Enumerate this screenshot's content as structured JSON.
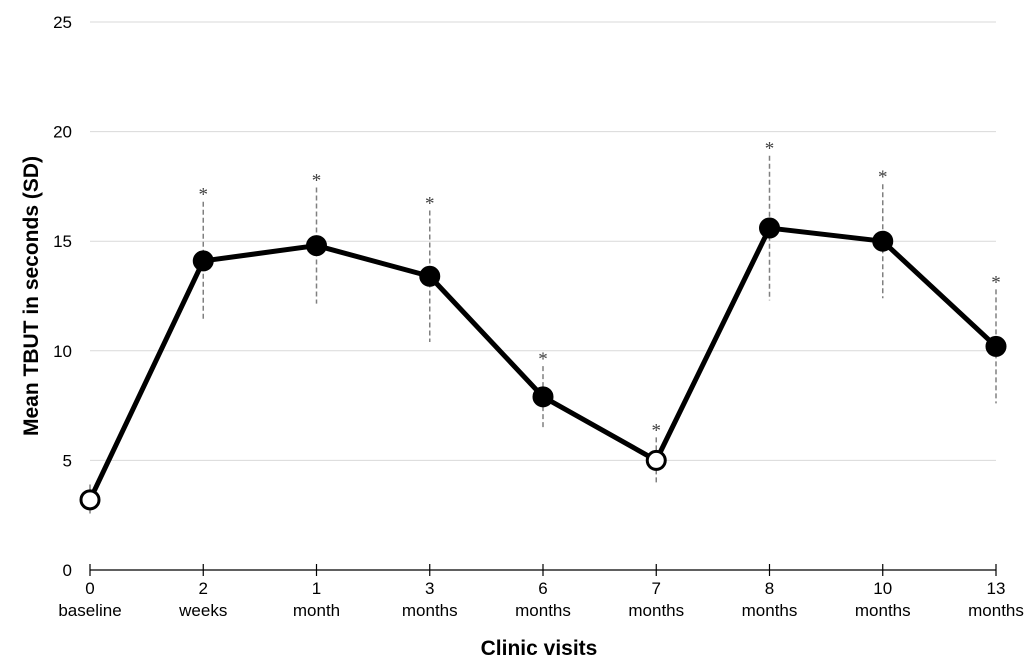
{
  "chart_data": {
    "type": "line",
    "x_label": "Clinic visits",
    "y_label": "Mean TBUT in seconds (SD)",
    "categories": [
      [
        "0",
        "baseline"
      ],
      [
        "2",
        "weeks"
      ],
      [
        "1",
        "month"
      ],
      [
        "3",
        "months"
      ],
      [
        "6",
        "months"
      ],
      [
        "7",
        "months"
      ],
      [
        "8",
        "months"
      ],
      [
        "10",
        "months"
      ],
      [
        "13",
        "months"
      ]
    ],
    "series": [
      {
        "name": "Mean TBUT",
        "color": "#000000",
        "values": [
          3.2,
          14.1,
          14.8,
          13.4,
          7.9,
          5.0,
          15.6,
          15.0,
          10.2
        ],
        "errors": [
          0.7,
          2.7,
          2.65,
          3.0,
          1.4,
          1.05,
          3.3,
          2.6,
          2.6
        ],
        "marker_fills": [
          "#ffffff",
          "#000000",
          "#000000",
          "#000000",
          "#000000",
          "#ffffff",
          "#000000",
          "#000000",
          "#000000"
        ],
        "significance": [
          null,
          "*",
          "*",
          "*",
          "*",
          "*",
          "*",
          "*",
          "*"
        ]
      }
    ],
    "ylim": [
      0,
      25
    ],
    "yticks": [
      0,
      5,
      10,
      15,
      20,
      25
    ],
    "grid": true,
    "grid_color": "#d9d9d9",
    "error_color": "#808080"
  }
}
